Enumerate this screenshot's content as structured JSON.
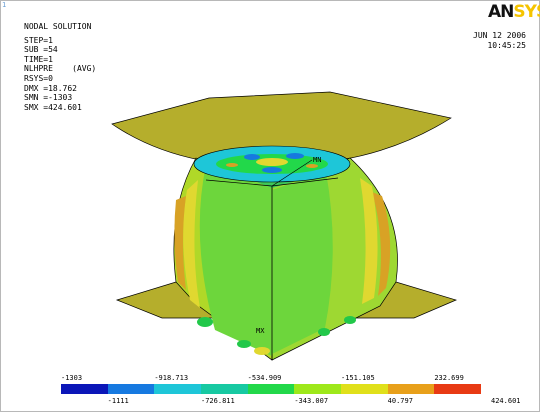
{
  "window_number": "1",
  "logo": {
    "part1": "AN",
    "part2": "SYS"
  },
  "info": {
    "title": "NODAL SOLUTION",
    "lines": [
      "STEP=1",
      "SUB =54",
      "TIME=1",
      "NLHPRE    (AVG)",
      "RSYS=0",
      "DMX =18.762",
      "SMN =-1303",
      "SMX =424.601"
    ]
  },
  "date": "JUN 12 2006",
  "time": "10:45:25",
  "markers": {
    "max": "MX",
    "min": "MN"
  },
  "legend": {
    "colors": [
      "#0b16b8",
      "#1679e0",
      "#1ec6d8",
      "#17c9a2",
      "#22d84a",
      "#9ee81a",
      "#e0e01a",
      "#e8a01a",
      "#e83a14"
    ],
    "top_labels": [
      "-1303",
      "-918.713",
      "-534.909",
      "-151.105",
      "232.699"
    ],
    "bottom_labels": [
      "-1111",
      "-726.811",
      "-343.007",
      "40.797",
      "424.601"
    ]
  },
  "colors": {
    "surface": "#b5ae2c",
    "outline": "#000000",
    "body_green": "#6dd63c",
    "body_yellow": "#b0d828",
    "band_orange": "#d8a225",
    "band_yellowgreen": "#c8d830"
  }
}
